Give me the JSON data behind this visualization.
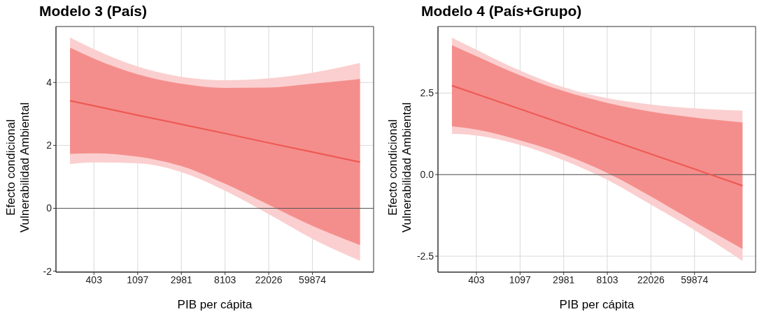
{
  "chart_data": [
    {
      "type": "line",
      "title": "Modelo 3 (País)",
      "xlabel": "PIB per cápita",
      "ylabel": "Efecto condicional\nVulnerabilidad Ambiental",
      "log": "x",
      "x": [
        233,
        403,
        1097,
        2981,
        8103,
        22026,
        59874,
        178000
      ],
      "series": [
        {
          "color": "#fbcfcf",
          "values": [
            null,
            null,
            null,
            null,
            null,
            null,
            null,
            null
          ],
          "lower": [
            1.41,
            1.46,
            1.43,
            1.15,
            0.56,
            -0.19,
            -0.97,
            -1.67
          ],
          "upper": [
            5.43,
            5.06,
            4.51,
            4.18,
            4.07,
            4.13,
            4.31,
            4.62
          ]
        },
        {
          "color": "#ee5a55",
          "values": [
            3.42,
            3.26,
            2.96,
            2.67,
            2.38,
            2.08,
            1.79,
            1.47
          ],
          "lower": [
            1.73,
            1.75,
            1.64,
            1.34,
            0.78,
            0.11,
            -0.56,
            -1.17
          ],
          "upper": [
            5.11,
            4.76,
            4.26,
            3.96,
            3.83,
            3.84,
            3.96,
            4.11
          ]
        }
      ],
      "xlim": [
        169,
        242800
      ],
      "xticks": [
        403,
        1097,
        2981,
        8103,
        22026,
        59874
      ],
      "ylim": [
        -2.03,
        5.78
      ],
      "yticks": [
        -2,
        0,
        2,
        4
      ],
      "grid": true,
      "legend": false,
      "ref_lines": [
        {
          "axis": "y",
          "value": 0,
          "color": "#555555"
        }
      ]
    },
    {
      "type": "line",
      "title": "Modelo 4 (País+Grupo)",
      "xlabel": "PIB per cápita",
      "ylabel": "Efecto condicional\nVulnerabilidad Ambiental",
      "log": "x",
      "x": [
        230,
        403,
        1097,
        2981,
        8103,
        22026,
        59874,
        180000
      ],
      "series": [
        {
          "color": "#fbcfcf",
          "values": [
            null,
            null,
            null,
            null,
            null,
            null,
            null,
            null
          ],
          "lower": [
            1.25,
            1.2,
            0.91,
            0.44,
            -0.16,
            -0.92,
            -1.7,
            -2.65
          ],
          "upper": [
            4.2,
            3.83,
            3.19,
            2.68,
            2.34,
            2.15,
            2.03,
            1.96
          ]
        },
        {
          "color": "#ee5a55",
          "values": [
            2.73,
            2.47,
            2.01,
            1.55,
            1.09,
            0.63,
            0.17,
            -0.34
          ],
          "lower": [
            1.48,
            1.38,
            1.05,
            0.62,
            0.05,
            -0.67,
            -1.45,
            -2.28
          ],
          "upper": [
            3.97,
            3.63,
            3.04,
            2.56,
            2.2,
            1.93,
            1.75,
            1.6
          ]
        }
      ],
      "xlim": [
        167,
        242800
      ],
      "xticks": [
        403,
        1097,
        2981,
        8103,
        22026,
        59874
      ],
      "ylim": [
        -2.99,
        4.54
      ],
      "yticks": [
        -2.5,
        {
          "value": 0,
          "label": "0.0"
        },
        2.5
      ],
      "grid": true,
      "legend": false,
      "ref_lines": [
        {
          "axis": "y",
          "value": 0,
          "color": "#555555"
        }
      ]
    }
  ]
}
